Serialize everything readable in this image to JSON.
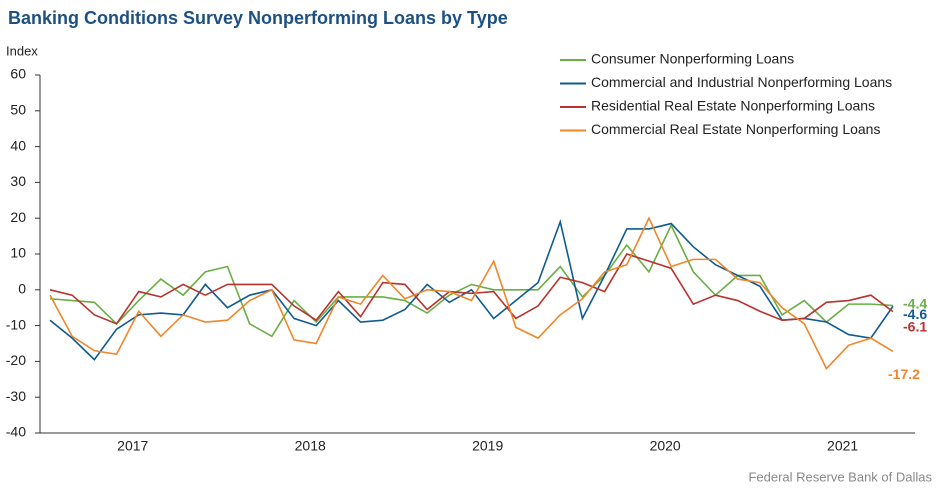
{
  "chart_data": {
    "type": "line",
    "title": "Banking Conditions Survey Nonperforming Loans by Type",
    "y_label": "Index",
    "source": "Federal Reserve Bank of Dallas",
    "categories": [
      null,
      null,
      null,
      null,
      "2017",
      null,
      null,
      null,
      null,
      null,
      null,
      null,
      "2018",
      null,
      null,
      null,
      null,
      null,
      null,
      null,
      "2019",
      null,
      null,
      null,
      null,
      null,
      null,
      null,
      "2020",
      null,
      null,
      null,
      null,
      null,
      null,
      null,
      "2021",
      null,
      null
    ],
    "ylim": [
      -40,
      60
    ],
    "yticks": [
      -40,
      -30,
      -20,
      -10,
      0,
      10,
      20,
      30,
      40,
      50,
      60
    ],
    "legend": "top-right",
    "grid": false,
    "series": [
      {
        "name": "Consumer Nonperforming Loans",
        "color": "#6aae45",
        "values": [
          -2.5,
          -3,
          -3.5,
          -9.5,
          -3,
          3,
          -1.5,
          5,
          6.5,
          -9.5,
          -13,
          -3,
          -9,
          -2,
          -2,
          -2,
          -3,
          -6.5,
          -1.5,
          1.5,
          0,
          0,
          0,
          6.5,
          -2,
          4,
          12.5,
          5,
          18,
          5,
          -1.5,
          4,
          4,
          -7,
          -3,
          -9,
          -4,
          -4,
          -4.4
        ]
      },
      {
        "name": "Commercial and Industrial Nonperforming Loans",
        "color": "#0f5b8f",
        "values": [
          -8.5,
          -13.5,
          -19.5,
          -11,
          -7,
          -6.5,
          -7,
          1.5,
          -5,
          -1.5,
          0,
          -8,
          -10,
          -3,
          -9,
          -8.5,
          -5.5,
          1.5,
          -3.5,
          0,
          -8,
          -3,
          2,
          19,
          -8,
          4,
          17,
          17,
          18.5,
          12,
          7,
          4,
          1,
          -8.5,
          -8,
          -9,
          -12.5,
          -13.5,
          -4.6
        ]
      },
      {
        "name": "Residential Real Estate Nonperforming Loans",
        "color": "#b8332c",
        "values": [
          0,
          -1.5,
          -7,
          -9.5,
          -0.5,
          -2,
          1.5,
          -1.5,
          1.5,
          1.5,
          1.5,
          -4.5,
          -8.5,
          -0.5,
          -7.5,
          2,
          1.5,
          -5.5,
          -0.5,
          -1,
          -0.5,
          -8,
          -4.5,
          3.5,
          2,
          -0.5,
          10,
          8,
          6,
          -4,
          -1.5,
          -3,
          -6,
          -8.5,
          -8,
          -3.5,
          -3,
          -1.5,
          -6.1
        ]
      },
      {
        "name": "Commercial Real Estate Nonperforming Loans",
        "color": "#f0862a",
        "values": [
          -1.5,
          -13,
          -17,
          -18,
          -6,
          -13,
          -7,
          -9,
          -8.5,
          -3,
          0,
          -14,
          -15,
          -2,
          -4,
          4,
          -2.5,
          0,
          -0.5,
          -3,
          8,
          -10.5,
          -13.5,
          -7,
          -2.5,
          5,
          7,
          20,
          6.5,
          8.5,
          8.5,
          3,
          2,
          -5,
          -9.5,
          -22,
          -15.5,
          -13.5,
          -17.2
        ]
      }
    ]
  }
}
